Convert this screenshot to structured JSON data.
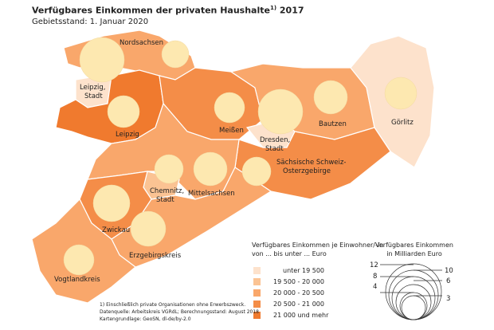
{
  "title": "Verfügbares Einkommen der privaten Haushalte",
  "title_footnote": "1)",
  "title_year": "2017",
  "subtitle": "Gebietsstand: 1. Januar 2020",
  "regions": [
    {
      "name": "Nordsachsen",
      "class": 2
    },
    {
      "name": "Leipzig, Stadt",
      "class": 0
    },
    {
      "name": "Leipzig",
      "class": 4
    },
    {
      "name": "Meißen",
      "class": 3
    },
    {
      "name": "Dresden, Stadt",
      "class": 0
    },
    {
      "name": "Bautzen",
      "class": 2
    },
    {
      "name": "Görlitz",
      "class": 0
    },
    {
      "name": "Sächsische Schweiz-Osterzgebirge",
      "class": 3
    },
    {
      "name": "Mittelsachsen",
      "class": 2
    },
    {
      "name": "Chemnitz, Stadt",
      "class": 1
    },
    {
      "name": "Zwickau",
      "class": 3
    },
    {
      "name": "Erzgebirgskreis",
      "class": 2
    },
    {
      "name": "Vogtlandkreis",
      "class": 2
    }
  ],
  "labels": {
    "nordsachsen": "Nordsachsen",
    "leipzig_stadt_1": "Leipzig,",
    "leipzig_stadt_2": "Stadt",
    "leipzig": "Leipzig",
    "meissen": "Meißen",
    "dresden_1": "Dresden,",
    "dresden_2": "Stadt",
    "bautzen": "Bautzen",
    "goerlitz": "Görlitz",
    "ssoe_1": "Sächsische Schweiz-",
    "ssoe_2": "Osterzgebirge",
    "mittelsachsen": "Mittelsachsen",
    "chemnitz_1": "Chemnitz,",
    "chemnitz_2": "Stadt",
    "zwickau": "Zwickau",
    "erzgebirge": "Erzgebirgskreis",
    "vogtland": "Vogtlandkreis"
  },
  "colors": {
    "classes": [
      "#fde2cc",
      "#fbc393",
      "#f9a76b",
      "#f48d48",
      "#f07a2e"
    ],
    "circle_fill": "#fde8b0",
    "border": "#ffffff"
  },
  "legend_classes": {
    "title_1": "Verfügbares Einkommen je Einwohner/-in",
    "title_2": "von ... bis unter ... Euro",
    "items": [
      "unter 19 500",
      "19 500 - 20 000",
      "20 000 - 20 500",
      "20 500 - 21 000",
      "21 000 und mehr"
    ]
  },
  "legend_circles": {
    "title_1": "Verfügbares Einkommen",
    "title_2": "in Milliarden Euro",
    "values": [
      "12",
      "10",
      "8",
      "6",
      "4",
      "3"
    ]
  },
  "notes": {
    "line1": "1) Einschließlich private Organisationen ohne Erwerbszweck.",
    "line2": "Datenquelle: Arbeitskreis VGRdL; Berechnungsstand: August 2018",
    "line3": "Kartengrundlage: GeoSN, dl-de/by-2.0"
  }
}
